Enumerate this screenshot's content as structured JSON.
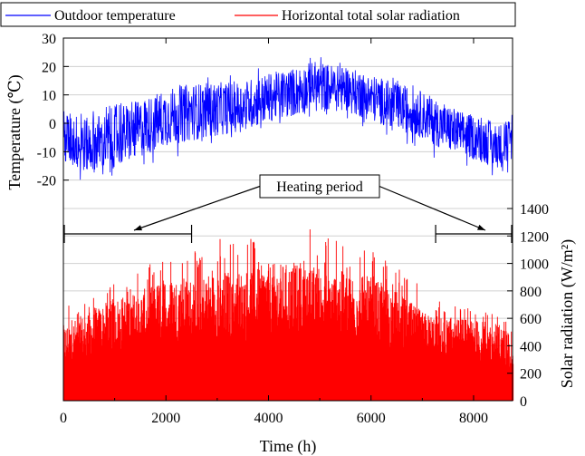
{
  "chart_data": {
    "type": "line",
    "legend_position": "top",
    "x_axis": {
      "label": "Time (h)",
      "range": [
        0,
        8760
      ],
      "ticks": [
        0,
        2000,
        4000,
        6000,
        8000
      ],
      "tick_labels": [
        "0",
        "2000",
        "4000",
        "6000",
        "8000"
      ]
    },
    "left_axis": {
      "label": "Temperature (℃)",
      "range": [
        -30,
        30
      ],
      "ticks": [
        -20,
        -10,
        0,
        10,
        20,
        30
      ],
      "tick_labels": [
        "-20",
        "-10",
        "0",
        "10",
        "20",
        "30"
      ]
    },
    "right_axis": {
      "label": "Solar radiation (W/m²)",
      "range": [
        0,
        1400
      ],
      "ticks": [
        0,
        200,
        400,
        600,
        800,
        1000,
        1200,
        1400
      ],
      "tick_labels": [
        "0",
        "200",
        "400",
        "600",
        "800",
        "1000",
        "1200",
        "1400"
      ]
    },
    "grid": true,
    "series": [
      {
        "name": "Outdoor temperature",
        "color": "#0000ff",
        "axis": "left",
        "x": [
          0,
          500,
          1000,
          1500,
          2000,
          2500,
          3000,
          3500,
          4000,
          4500,
          4900,
          5500,
          6000,
          6500,
          7000,
          7500,
          8000,
          8500,
          8760
        ],
        "mean": [
          -5,
          -8,
          -5,
          -2,
          2,
          4,
          5,
          6,
          9,
          11,
          13,
          12,
          9,
          6,
          3,
          -2,
          -5,
          -8,
          -6
        ],
        "min": [
          -20,
          -21,
          -20,
          -17,
          -13,
          -10,
          -7,
          -5,
          -3,
          0,
          2,
          0,
          -3,
          -6,
          -10,
          -16,
          -18,
          -20,
          -18
        ],
        "max": [
          6,
          5,
          9,
          10,
          14,
          17,
          18,
          19,
          20,
          23,
          26,
          21,
          19,
          16,
          12,
          6,
          3,
          1,
          5
        ]
      },
      {
        "name": "Horizontal total solar radiation",
        "color": "#ff0000",
        "axis": "right",
        "x": [
          0,
          500,
          1000,
          1500,
          2000,
          2500,
          3000,
          3500,
          4000,
          4400,
          5000,
          5500,
          6000,
          6500,
          7000,
          7500,
          8000,
          8500,
          8760
        ],
        "typical_peak": [
          550,
          650,
          750,
          800,
          900,
          900,
          950,
          950,
          1000,
          1000,
          950,
          950,
          900,
          800,
          650,
          600,
          600,
          550,
          500
        ],
        "max": [
          720,
          780,
          880,
          950,
          1100,
          1080,
          1180,
          1220,
          1230,
          1330,
          1240,
          1220,
          1150,
          1000,
          820,
          700,
          680,
          620,
          560
        ]
      }
    ],
    "annotations": [
      {
        "text": "Heating period",
        "intervals": [
          [
            0,
            2500
          ],
          [
            7260,
            8760
          ]
        ]
      }
    ]
  }
}
